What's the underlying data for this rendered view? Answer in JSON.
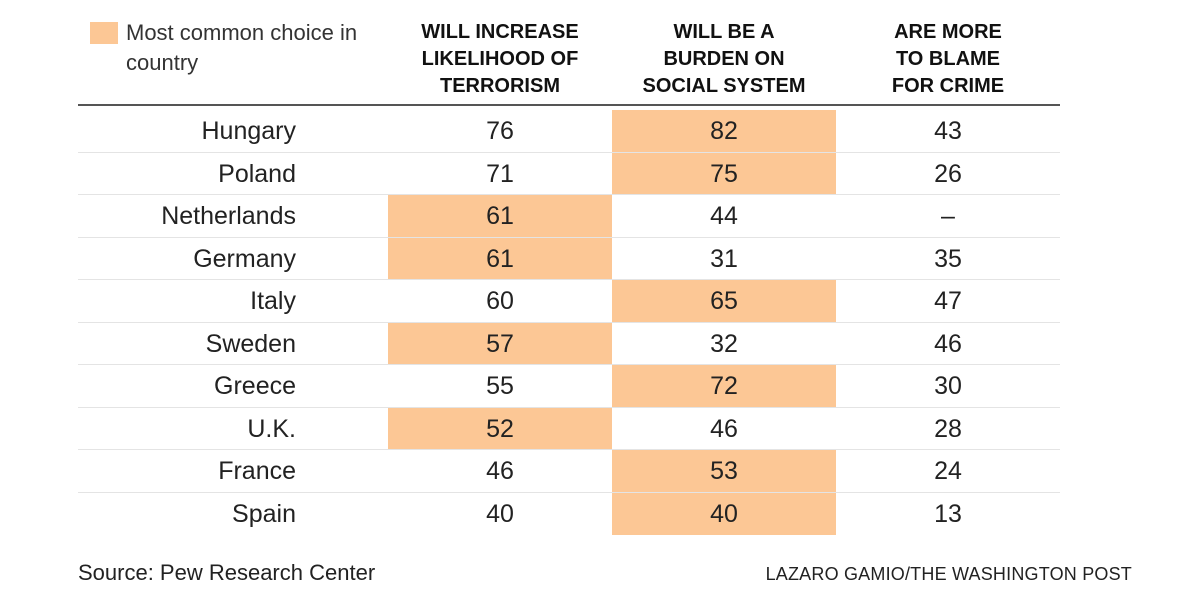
{
  "colors": {
    "highlight": "#fcc795",
    "rule": "#555555",
    "separator": "#e4e4e4"
  },
  "legend": {
    "label": "Most common choice in country"
  },
  "chart_data": {
    "type": "table",
    "columns": [
      {
        "label": "Will increase likelihood of terrorism"
      },
      {
        "label": "Will be a burden on social system"
      },
      {
        "label": "Are more to blame for crime"
      }
    ],
    "header_lines": [
      [
        "WILL INCREASE",
        "LIKELIHOOD OF",
        "TERRORISM"
      ],
      [
        "WILL BE A",
        "BURDEN ON",
        "SOCIAL SYSTEM"
      ],
      [
        "ARE MORE",
        "TO BLAME",
        "FOR CRIME"
      ]
    ],
    "rows": [
      {
        "country": "Hungary",
        "values": [
          "76",
          "82",
          "43"
        ],
        "highlight": 1
      },
      {
        "country": "Poland",
        "values": [
          "71",
          "75",
          "26"
        ],
        "highlight": 1
      },
      {
        "country": "Netherlands",
        "values": [
          "61",
          "44",
          "–"
        ],
        "highlight": 0
      },
      {
        "country": "Germany",
        "values": [
          "61",
          "31",
          "35"
        ],
        "highlight": 0
      },
      {
        "country": "Italy",
        "values": [
          "60",
          "65",
          "47"
        ],
        "highlight": 1
      },
      {
        "country": "Sweden",
        "values": [
          "57",
          "32",
          "46"
        ],
        "highlight": 0
      },
      {
        "country": "Greece",
        "values": [
          "55",
          "72",
          "30"
        ],
        "highlight": 1
      },
      {
        "country": "U.K.",
        "values": [
          "52",
          "46",
          "28"
        ],
        "highlight": 0
      },
      {
        "country": "France",
        "values": [
          "46",
          "53",
          "24"
        ],
        "highlight": 1
      },
      {
        "country": "Spain",
        "values": [
          "40",
          "40",
          "13"
        ],
        "highlight": 1
      }
    ]
  },
  "footer": {
    "source": "Source: Pew Research Center",
    "credit": "LAZARO GAMIO/THE WASHINGTON POST"
  }
}
